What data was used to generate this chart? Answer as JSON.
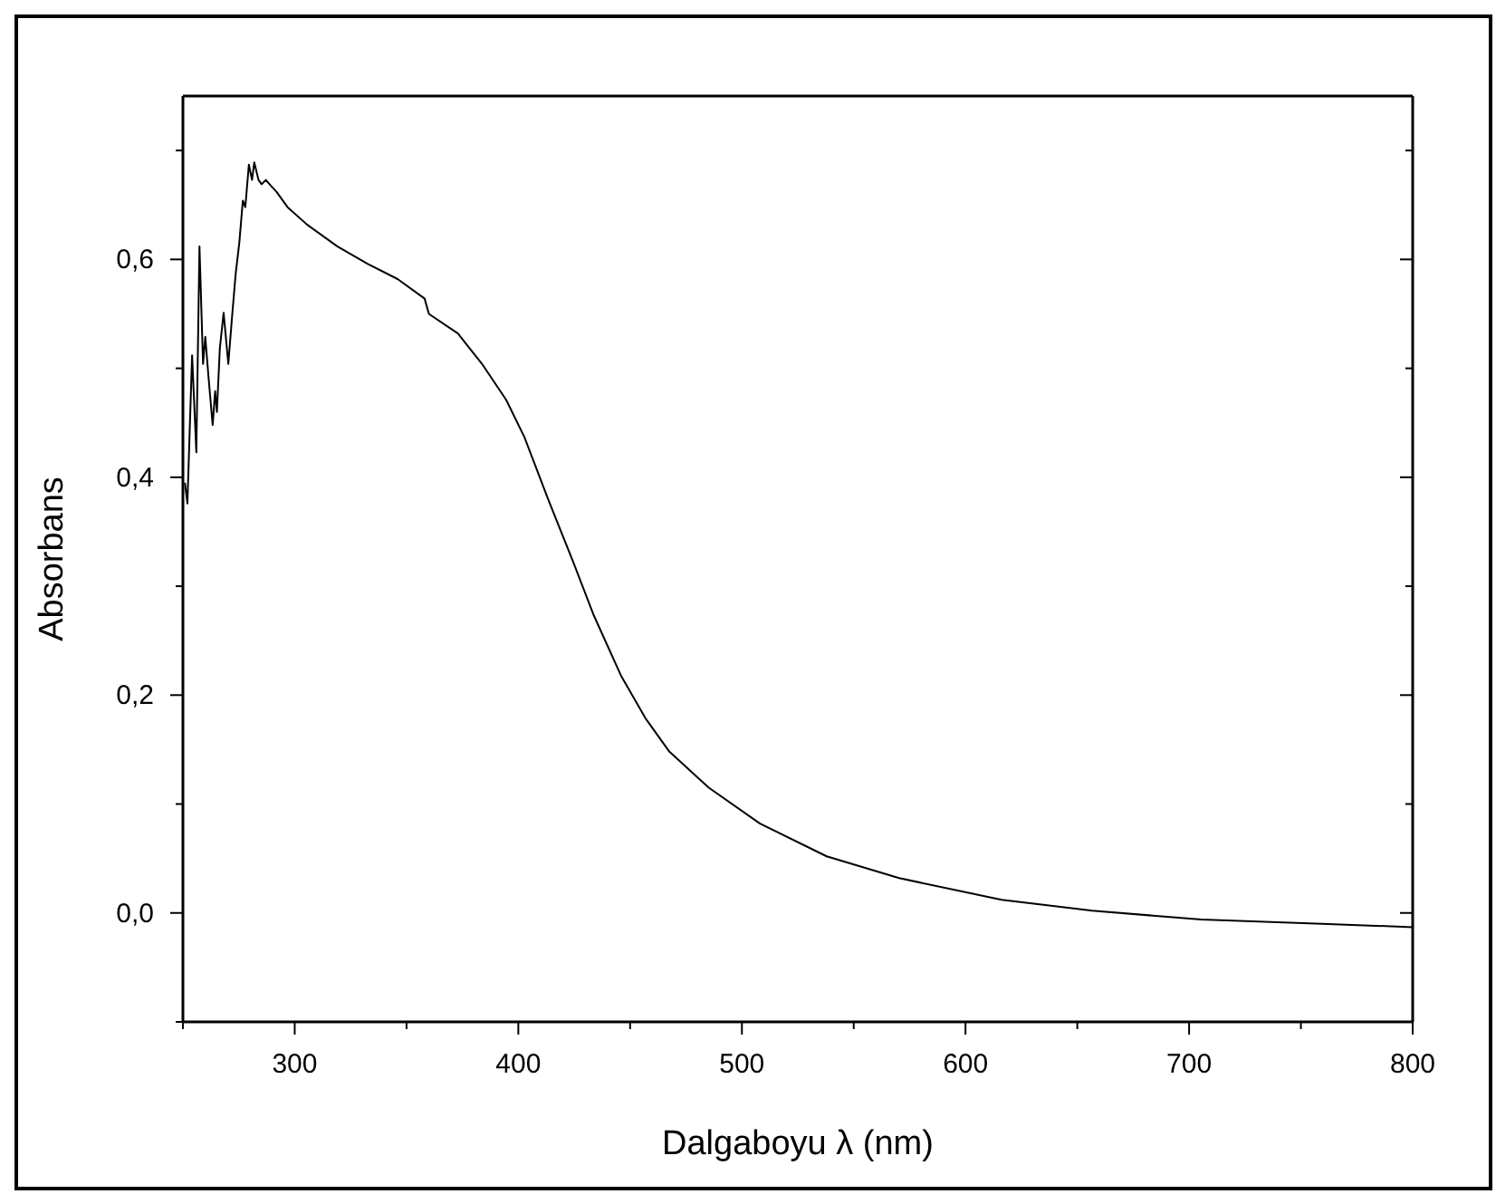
{
  "chart_data": {
    "type": "line",
    "xlabel": "Dalgaboyu λ (nm)",
    "ylabel": "Absorbans",
    "xlim": [
      250,
      800
    ],
    "xticks": [
      {
        "value": 250,
        "label": null
      },
      300,
      {
        "value": 350,
        "label": null
      },
      400,
      {
        "value": 450,
        "label": null
      },
      500,
      {
        "value": 550,
        "label": null
      },
      600,
      {
        "value": 650,
        "label": null
      },
      700,
      {
        "value": 750,
        "label": null
      },
      800
    ],
    "ylim": [
      -0.1,
      0.75
    ],
    "yticks": [
      {
        "value": -0.1,
        "label": null
      },
      {
        "value": 0,
        "label": "0,0"
      },
      {
        "value": 0.1,
        "label": null
      },
      {
        "value": 0.2,
        "label": "0,2"
      },
      {
        "value": 0.3,
        "label": null
      },
      {
        "value": 0.4,
        "label": "0,4"
      },
      {
        "value": 0.5,
        "label": null
      },
      {
        "value": 0.6,
        "label": "0,6"
      },
      {
        "value": 0.7,
        "label": null
      }
    ],
    "marker": "none",
    "line_style": "solid",
    "series": [
      {
        "color": "#000000",
        "x": [
          250.9,
          252,
          254.1,
          256,
          257.4,
          259,
          260,
          261.4,
          263.3,
          264.4,
          265.2,
          266.5,
          268.2,
          270.3,
          272,
          273.6,
          275.2,
          276.8,
          277.9,
          279.5,
          280.9,
          281.9,
          283.8,
          285.2,
          287.1,
          289.2,
          291.9,
          296.8,
          305.5,
          319,
          332.5,
          346,
          358.1,
          360,
          373,
          383.8,
          394.6,
          402.7,
          413.5,
          424.4,
          433.8,
          445.9,
          456.8,
          467.6,
          485.2,
          508.1,
          537.9,
          570.3,
          616.2,
          656.7,
          705.4,
          759.4,
          799.9
        ],
        "values": [
          0.395,
          0.376,
          0.512,
          0.423,
          0.612,
          0.504,
          0.529,
          0.493,
          0.448,
          0.479,
          0.46,
          0.518,
          0.551,
          0.504,
          0.548,
          0.587,
          0.615,
          0.654,
          0.648,
          0.687,
          0.673,
          0.689,
          0.673,
          0.669,
          0.673,
          0.668,
          0.662,
          0.648,
          0.632,
          0.612,
          0.596,
          0.582,
          0.564,
          0.55,
          0.532,
          0.504,
          0.471,
          0.437,
          0.379,
          0.323,
          0.273,
          0.218,
          0.179,
          0.148,
          0.115,
          0.082,
          0.052,
          0.032,
          0.012,
          0.002,
          -0.006,
          -0.01,
          -0.013
        ]
      }
    ]
  }
}
